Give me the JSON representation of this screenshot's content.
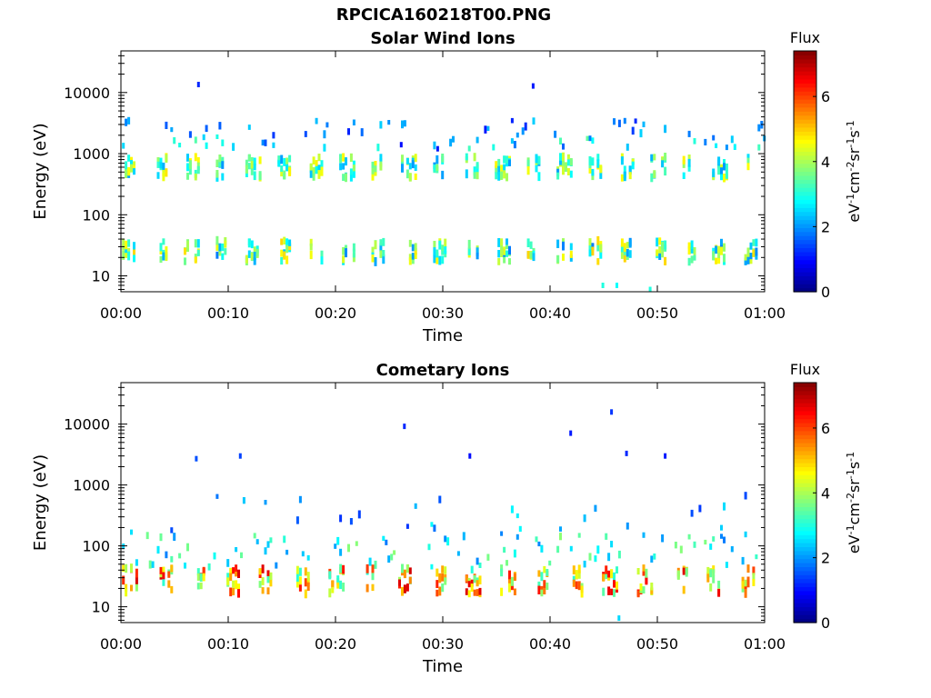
{
  "figure": {
    "filename": "RPCICA160218T00.PNG"
  },
  "chart_data": [
    {
      "type": "heatmap",
      "title": "Solar Wind Ions",
      "xlabel": "Time",
      "ylabel": "Energy (eV)",
      "xticks": [
        "00:00",
        "00:10",
        "00:20",
        "00:30",
        "00:40",
        "00:50",
        "01:00"
      ],
      "xlim_minutes": [
        0,
        60
      ],
      "yscale": "log",
      "ylim": [
        5.5,
        48000
      ],
      "yticks": [
        10,
        100,
        1000,
        10000
      ],
      "yticklabels": [
        "10",
        "100",
        "1000",
        "10000"
      ],
      "colorbar": {
        "label": "Flux",
        "unit_label": "eV-1cm-2sr-1s-1",
        "range": [
          0,
          7.4
        ],
        "ticks": [
          0,
          2,
          4,
          6
        ],
        "colormap": "jet"
      },
      "bands": [
        {
          "energy_range": [
            17,
            38
          ],
          "flux_range": [
            1.8,
            5.0
          ],
          "pattern": "bursts",
          "burst_period_min": 2.9
        },
        {
          "energy_range": [
            400,
            900
          ],
          "flux_range": [
            2.0,
            4.8
          ],
          "pattern": "bursts",
          "burst_period_min": 2.9
        },
        {
          "energy_range": [
            1200,
            1900
          ],
          "flux_range": [
            1.5,
            3.5
          ],
          "pattern": "sparse"
        },
        {
          "energy_range": [
            2000,
            3500
          ],
          "flux_range": [
            1.0,
            2.5
          ],
          "pattern": "sparse"
        }
      ],
      "points": [
        {
          "t": 7.1,
          "e": 13500,
          "flux": 1.2
        },
        {
          "t": 38.3,
          "e": 12800,
          "flux": 1.1
        },
        {
          "t": 26.0,
          "e": 1400,
          "flux": 1.0
        },
        {
          "t": 29.4,
          "e": 1200,
          "flux": 1.1
        },
        {
          "t": 44.8,
          "e": 7,
          "flux": 3.0
        },
        {
          "t": 46.1,
          "e": 7,
          "flux": 2.8
        },
        {
          "t": 49.2,
          "e": 6,
          "flux": 3.0
        }
      ]
    },
    {
      "type": "heatmap",
      "title": "Cometary Ions",
      "xlabel": "Time",
      "ylabel": "Energy (eV)",
      "xticks": [
        "00:00",
        "00:10",
        "00:20",
        "00:30",
        "00:40",
        "00:50",
        "01:00"
      ],
      "xlim_minutes": [
        0,
        60
      ],
      "yscale": "log",
      "ylim": [
        5.5,
        48000
      ],
      "yticks": [
        10,
        100,
        1000,
        10000
      ],
      "yticklabels": [
        "10",
        "100",
        "1000",
        "10000"
      ],
      "colorbar": {
        "label": "Flux",
        "unit_label": "eV-1cm-2sr-1s-1",
        "range": [
          0,
          7.4
        ],
        "ticks": [
          0,
          2,
          4,
          6
        ],
        "colormap": "jet"
      },
      "bands": [
        {
          "energy_range": [
            16,
            44
          ],
          "flux_range": [
            3.0,
            6.8
          ],
          "pattern": "bursts",
          "burst_period_min": 3.2
        },
        {
          "energy_range": [
            45,
            160
          ],
          "flux_range": [
            1.8,
            3.8
          ],
          "pattern": "scattered"
        },
        {
          "energy_range": [
            150,
            700
          ],
          "flux_range": [
            1.2,
            2.8
          ],
          "pattern": "sparse"
        }
      ],
      "points": [
        {
          "t": 26.3,
          "e": 9200,
          "flux": 1.2
        },
        {
          "t": 41.8,
          "e": 7100,
          "flux": 1.1
        },
        {
          "t": 45.6,
          "e": 15800,
          "flux": 1.3
        },
        {
          "t": 32.4,
          "e": 3000,
          "flux": 1.0
        },
        {
          "t": 50.6,
          "e": 3000,
          "flux": 1.1
        },
        {
          "t": 11.0,
          "e": 3000,
          "flux": 1.4
        },
        {
          "t": 6.9,
          "e": 2700,
          "flux": 1.5
        },
        {
          "t": 47.0,
          "e": 3300,
          "flux": 1.2
        },
        {
          "t": 46.3,
          "e": 6.5,
          "flux": 2.5
        }
      ]
    }
  ]
}
